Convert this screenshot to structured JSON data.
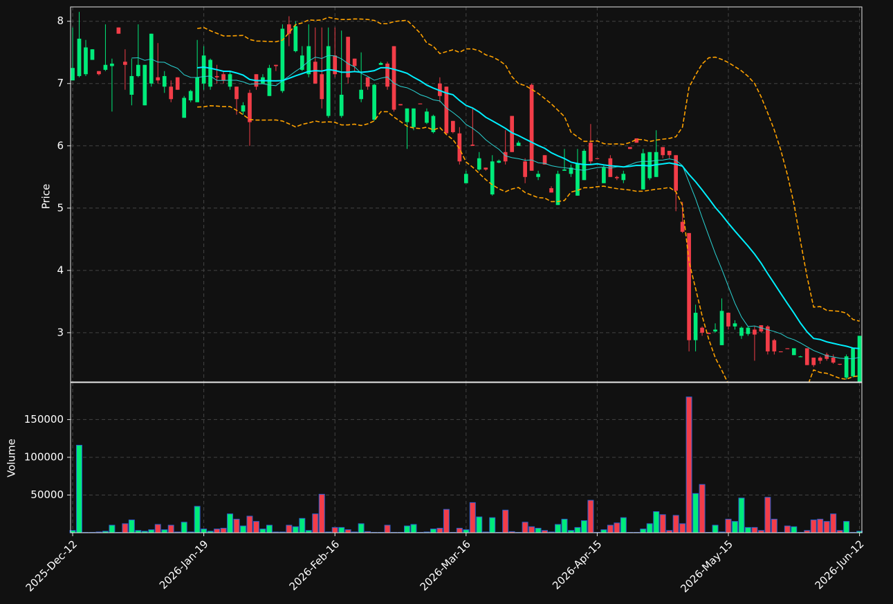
{
  "chart_data": {
    "type": "candlestick",
    "categories": [
      "2025-Dec-12",
      null,
      null,
      null,
      null,
      null,
      null,
      null,
      null,
      null,
      null,
      null,
      null,
      null,
      null,
      null,
      null,
      null,
      null,
      null,
      "2026-Jan-19",
      null,
      null,
      null,
      null,
      null,
      null,
      null,
      null,
      null,
      null,
      null,
      null,
      null,
      null,
      null,
      null,
      null,
      null,
      null,
      "2026-Feb-16",
      null,
      null,
      null,
      null,
      null,
      null,
      null,
      null,
      null,
      null,
      null,
      null,
      null,
      null,
      null,
      null,
      null,
      null,
      null,
      "2026-Mar-16",
      null,
      null,
      null,
      null,
      null,
      null,
      null,
      null,
      null,
      null,
      null,
      null,
      null,
      null,
      null,
      null,
      null,
      null,
      null,
      "2026-Apr-15",
      null,
      null,
      null,
      null,
      null,
      null,
      null,
      null,
      null,
      null,
      null,
      null,
      null,
      null,
      null,
      null,
      null,
      null,
      null,
      "2026-May-15",
      null,
      null,
      null,
      null,
      null,
      null,
      null,
      null,
      null,
      null,
      null,
      null,
      null,
      null,
      null,
      null,
      null,
      null,
      null,
      "2026-Jun-12"
    ],
    "open": [
      7.05,
      7.12,
      7.15,
      7.38,
      7.2,
      7.22,
      7.28,
      7.9,
      7.35,
      6.82,
      7.12,
      6.65,
      7.0,
      7.1,
      6.95,
      6.95,
      7.1,
      6.45,
      6.73,
      6.7,
      7.0,
      6.95,
      7.12,
      7.15,
      6.95,
      6.95,
      6.55,
      6.85,
      7.15,
      7.0,
      6.8,
      7.3,
      6.88,
      7.95,
      7.52,
      7.22,
      7.15,
      7.35,
      7.15,
      6.48,
      7.45,
      6.48,
      7.75,
      7.4,
      6.75,
      7.1,
      6.42,
      7.3,
      7.32,
      7.6,
      6.67,
      6.38,
      6.3,
      6.68,
      6.37,
      6.22,
      7.0,
      6.95,
      6.4,
      6.2,
      5.4,
      6.02,
      5.62,
      5.65,
      5.22,
      5.73,
      5.9,
      6.48,
      6.0,
      5.75,
      6.98,
      5.5,
      5.85,
      5.32,
      5.05,
      5.6,
      5.55,
      5.2,
      5.45,
      6.05,
      5.8,
      5.4,
      5.8,
      5.5,
      5.45,
      5.98,
      6.12,
      5.3,
      5.48,
      5.5,
      5.98,
      5.92,
      5.85,
      4.78,
      4.6,
      2.88,
      3.08,
      3.0,
      3.02,
      2.8,
      3.32,
      3.1,
      2.95,
      2.98,
      3.05,
      3.12,
      3.1,
      2.88,
      2.7,
      2.75,
      2.64,
      2.62,
      2.75,
      2.6,
      2.6,
      2.65,
      2.6,
      2.5,
      2.28,
      2.3,
      2.2
    ],
    "high": [
      7.9,
      8.15,
      7.7,
      7.55,
      7.2,
      7.95,
      7.4,
      7.9,
      7.55,
      7.4,
      7.95,
      7.3,
      7.8,
      7.65,
      7.2,
      7.05,
      7.1,
      6.8,
      6.9,
      7.7,
      7.6,
      7.4,
      7.3,
      7.2,
      7.2,
      6.95,
      6.7,
      6.9,
      7.15,
      7.15,
      7.3,
      7.3,
      7.95,
      8.08,
      8.0,
      7.6,
      7.95,
      7.9,
      7.9,
      7.9,
      7.9,
      7.85,
      7.75,
      7.4,
      7.5,
      7.1,
      7.0,
      7.35,
      7.35,
      7.6,
      6.67,
      6.6,
      6.6,
      6.68,
      6.6,
      6.5,
      7.1,
      6.95,
      6.4,
      6.3,
      5.6,
      6.6,
      5.9,
      5.65,
      5.85,
      5.78,
      6.25,
      6.48,
      6.08,
      5.8,
      7.0,
      5.6,
      5.85,
      5.35,
      5.6,
      5.95,
      5.7,
      5.95,
      5.95,
      6.35,
      5.8,
      5.7,
      5.85,
      5.52,
      5.6,
      5.98,
      6.12,
      5.95,
      5.9,
      6.25,
      5.98,
      5.92,
      5.85,
      5.1,
      4.6,
      3.45,
      3.1,
      3.0,
      3.15,
      3.55,
      3.32,
      3.2,
      3.1,
      3.1,
      3.1,
      3.12,
      3.12,
      2.9,
      2.7,
      2.75,
      2.75,
      2.63,
      2.75,
      2.6,
      2.62,
      2.68,
      2.65,
      2.5,
      2.65,
      2.75,
      2.95
    ],
    "low": [
      7.05,
      7.1,
      7.12,
      7.38,
      7.13,
      7.2,
      6.55,
      7.8,
      6.9,
      6.65,
      7.1,
      6.65,
      6.95,
      7.0,
      6.85,
      6.7,
      6.9,
      6.45,
      6.7,
      6.7,
      6.9,
      6.9,
      7.0,
      7.0,
      6.9,
      6.5,
      6.5,
      6.0,
      6.9,
      7.0,
      6.8,
      7.2,
      6.85,
      7.6,
      7.5,
      7.2,
      7.1,
      7.0,
      6.6,
      6.45,
      7.1,
      6.45,
      7.0,
      7.2,
      6.7,
      6.9,
      6.4,
      7.3,
      6.9,
      6.55,
      6.65,
      5.95,
      6.25,
      6.67,
      6.35,
      6.2,
      6.7,
      6.2,
      6.2,
      5.7,
      5.4,
      6.0,
      5.6,
      5.6,
      5.2,
      5.72,
      5.7,
      5.9,
      6.0,
      5.4,
      5.6,
      5.45,
      5.7,
      5.25,
      5.05,
      5.6,
      5.5,
      5.2,
      5.45,
      5.7,
      5.79,
      5.4,
      5.5,
      5.45,
      5.4,
      5.95,
      6.05,
      5.3,
      5.45,
      5.5,
      5.8,
      5.8,
      4.95,
      4.6,
      2.7,
      2.7,
      2.95,
      2.98,
      3.0,
      2.8,
      3.05,
      3.05,
      2.9,
      2.95,
      2.55,
      3.0,
      2.65,
      2.65,
      2.69,
      2.74,
      2.64,
      2.61,
      2.48,
      2.45,
      2.5,
      2.55,
      2.5,
      2.48,
      2.25,
      2.28,
      2.18
    ],
    "close": [
      7.25,
      7.72,
      7.58,
      7.55,
      7.15,
      7.3,
      7.32,
      7.8,
      7.3,
      7.12,
      7.3,
      7.3,
      7.8,
      7.05,
      7.12,
      6.75,
      6.9,
      6.77,
      6.88,
      7.1,
      7.45,
      7.38,
      7.1,
      7.05,
      7.15,
      6.75,
      6.65,
      6.38,
      6.95,
      7.1,
      7.25,
      7.28,
      7.88,
      7.8,
      7.92,
      7.45,
      7.6,
      7.0,
      6.75,
      7.6,
      7.15,
      6.82,
      7.1,
      7.28,
      6.9,
      6.95,
      6.98,
      7.33,
      6.95,
      6.58,
      6.65,
      6.6,
      6.6,
      6.67,
      6.55,
      6.48,
      6.8,
      6.2,
      6.22,
      5.75,
      5.55,
      6.0,
      5.8,
      5.62,
      5.75,
      5.76,
      5.75,
      5.9,
      6.05,
      5.5,
      5.6,
      5.55,
      5.7,
      5.25,
      5.55,
      5.62,
      5.65,
      5.72,
      5.92,
      5.75,
      5.79,
      5.65,
      5.5,
      5.48,
      5.55,
      5.95,
      6.05,
      5.88,
      5.9,
      5.9,
      5.85,
      5.85,
      5.28,
      4.62,
      2.88,
      3.32,
      3.0,
      2.98,
      3.05,
      3.35,
      3.1,
      3.15,
      3.08,
      3.08,
      2.97,
      3.02,
      2.7,
      2.7,
      2.69,
      2.74,
      2.75,
      2.62,
      2.48,
      2.48,
      2.55,
      2.58,
      2.52,
      2.49,
      2.62,
      2.75,
      2.95
    ],
    "up_color": "#00eb7a",
    "down_color": "#f23d48",
    "ylabel": "Price",
    "ylim": [
      2.21,
      8.23
    ],
    "yticks": [
      3,
      4,
      5,
      6,
      7,
      8
    ],
    "grid": true,
    "moving_averages": [
      {
        "period": 10,
        "color": "#2ad4d4",
        "width": 1
      },
      {
        "period": 20,
        "color": "#00f0ff",
        "width": 2
      }
    ],
    "bollinger": {
      "period": 20,
      "k": 2,
      "color": "#ffa200"
    },
    "volume": {
      "ylabel": "Volume",
      "values": [
        3000,
        116000,
        500,
        500,
        1000,
        2000,
        10000,
        500,
        12000,
        17000,
        3000,
        2000,
        4000,
        11000,
        4000,
        10000,
        1000,
        14000,
        1000,
        35000,
        5000,
        2000,
        5000,
        6000,
        25000,
        18000,
        9000,
        22000,
        15000,
        5000,
        10000,
        1000,
        1000,
        10000,
        8000,
        19000,
        3000,
        25000,
        51000,
        1000,
        7000,
        7000,
        4000,
        1000,
        12000,
        1500,
        500,
        500,
        10000,
        500,
        500,
        9000,
        11000,
        500,
        1000,
        5000,
        6000,
        31000,
        500,
        6000,
        4000,
        40000,
        21000,
        1000,
        20000,
        500,
        30000,
        1500,
        500,
        14000,
        8000,
        6000,
        3000,
        1000,
        11000,
        18000,
        3000,
        7000,
        16000,
        43000,
        500,
        4000,
        10000,
        13000,
        20000,
        500,
        500,
        5000,
        12000,
        28000,
        24000,
        3000,
        23000,
        12000,
        180000,
        52000,
        64000,
        500,
        10000,
        1000,
        18000,
        15000,
        46000,
        7000,
        7000,
        3000,
        47000,
        18000,
        500,
        9000,
        8000,
        500,
        3000,
        17000,
        18000,
        15000,
        25000,
        3000,
        15000,
        500,
        2000
      ],
      "ylim": [
        0,
        199000
      ],
      "yticks": [
        50000,
        100000,
        150000
      ],
      "edge_color": "#2a5fd0"
    }
  }
}
